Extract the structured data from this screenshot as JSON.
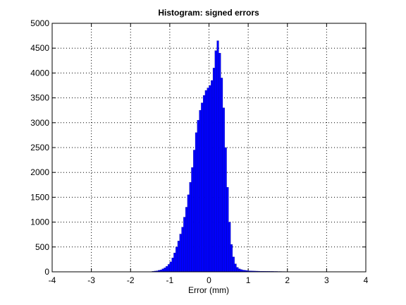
{
  "chart_data": {
    "type": "histogram",
    "title": "Histogram: signed errors",
    "xlabel": "Error (mm)",
    "bins": [
      -1.5,
      -1.45,
      -1.4,
      -1.35,
      -1.3,
      -1.25,
      -1.2,
      -1.15,
      -1.1,
      -1.05,
      -1,
      -0.95,
      -0.9,
      -0.85,
      -0.8,
      -0.75,
      -0.7,
      -0.65,
      -0.6,
      -0.55,
      -0.5,
      -0.45,
      -0.4,
      -0.35,
      -0.3,
      -0.25,
      -0.2,
      -0.15,
      -0.1,
      -0.05,
      0,
      0.05,
      0.1,
      0.15,
      0.2,
      0.25,
      0.3,
      0.35,
      0.4,
      0.45,
      0.5,
      0.55,
      0.6,
      0.65,
      0.7,
      0.75,
      0.8,
      0.85,
      0.9,
      0.95,
      1,
      1.05,
      1.1,
      1.15,
      1.2,
      1.25,
      1.3,
      1.35,
      1.4,
      1.45,
      1.5,
      1.55,
      1.6,
      1.65,
      1.7,
      1.75,
      1.8,
      1.85,
      1.9,
      1.95,
      2,
      2.05,
      2.1,
      2.15,
      2.2,
      2.25,
      2.3,
      2.35,
      2.4
    ],
    "values": [
      5,
      10,
      15,
      20,
      30,
      40,
      60,
      80,
      110,
      150,
      200,
      280,
      380,
      500,
      620,
      760,
      900,
      1100,
      1300,
      1550,
      1800,
      2100,
      2450,
      2800,
      3050,
      3250,
      3400,
      3550,
      3650,
      3700,
      3750,
      3850,
      4100,
      4450,
      4650,
      4400,
      3900,
      3300,
      2500,
      1700,
      1000,
      550,
      300,
      160,
      90,
      60,
      45,
      35,
      30,
      25,
      20,
      18,
      16,
      15,
      14,
      13,
      12,
      12,
      11,
      10,
      10,
      9,
      9,
      8,
      8,
      7,
      7,
      6,
      6,
      5,
      5,
      4,
      4,
      3,
      3,
      2,
      2,
      1
    ],
    "color": "#0000ff",
    "xlim": [
      -4,
      4
    ],
    "xticks": [
      -4,
      -3,
      -2,
      -1,
      0,
      1,
      2,
      3,
      4
    ],
    "ylim": [
      0,
      5000
    ],
    "yticks": [
      0,
      500,
      1000,
      1500,
      2000,
      2500,
      3000,
      3500,
      4000,
      4500,
      5000
    ],
    "grid": true
  }
}
